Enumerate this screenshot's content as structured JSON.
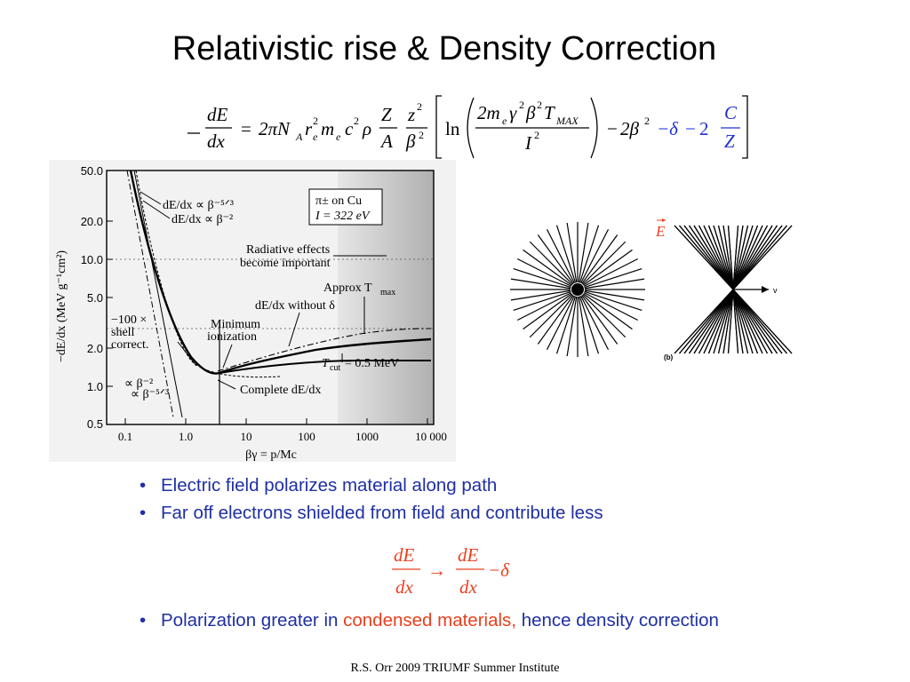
{
  "title": "Relativistic rise & Density Correction",
  "bethe_formula": {
    "lhs_num": "dE",
    "lhs_den": "dx",
    "coef": "2πN",
    "sub_A": "A",
    "r": "r",
    "sub_e": "e",
    "sup_2": "2",
    "m": "m",
    "c": "c",
    "rho": "ρ",
    "Z": "Z",
    "A": "A",
    "z": "z",
    "beta": "β",
    "ln": "ln",
    "num_text": "2m",
    "gamma": "γ",
    "T": "T",
    "max": "MAX",
    "I": "I",
    "minus2beta": "2β",
    "delta_term": "−δ",
    "two": "2",
    "C": "C",
    "Z2": "Z"
  },
  "graph": {
    "y_axis_label": "−dE/dx (MeV g⁻¹cm²)",
    "x_axis_label": "βγ = p/Mc",
    "y_ticks": [
      "50.0",
      "20.0",
      "10.0",
      "5.0",
      "2.0",
      "1.0",
      "0.5"
    ],
    "x_ticks": [
      "0.1",
      "1.0",
      "10",
      "100",
      "1000",
      "10 000"
    ],
    "legend_line1": "π± on Cu",
    "legend_line2": "I = 322 eV",
    "ann_beta53": "dE/dx ∝ β⁻⁵ᐟ³",
    "ann_beta2": "dE/dx ∝ β⁻²",
    "ann_radiative1": "Radiative effects",
    "ann_radiative2": "become important",
    "ann_approx": "Approx T",
    "ann_approx_sub": "max",
    "ann_without": "dE/dx without δ",
    "ann_shell1": "−100 ×",
    "ann_shell2": "shell",
    "ann_shell3": "correct.",
    "ann_min1": "Minimum",
    "ann_min2": "ionization",
    "ann_tcut": "T",
    "ann_tcut_sub": "cut",
    "ann_tcut_val": " = 0.5 MeV",
    "ann_complete": "Complete dE/dx",
    "ann_lowb2": "∝ β⁻²",
    "ann_lowb53": "∝ β⁻⁵ᐟ³"
  },
  "polarization_figure": {
    "field_label": "E",
    "v_label": "v",
    "panel_label": "(b)"
  },
  "bullets": [
    "Electric field polarizes material along path",
    "Far off electrons shielded from field and contribute less"
  ],
  "density_formula": {
    "num1": "dE",
    "den1": "dx",
    "arrow": "→",
    "num2": "dE",
    "den2": "dx",
    "minus_delta": "−δ"
  },
  "bullet3": {
    "before": "Polarization greater in ",
    "highlight": "condensed materials,",
    "after": " hence density correction"
  },
  "footer": "R.S. Orr 2009 TRIUMF Summer Institute",
  "colors": {
    "bullet_text": "#1f2fa3",
    "highlight": "#e8401e",
    "formula_blue": "#2030d0",
    "field_red": "#e8401e"
  }
}
